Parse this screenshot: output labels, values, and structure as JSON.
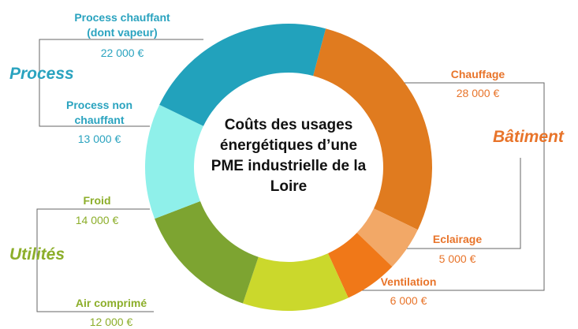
{
  "chart_data": {
    "type": "pie",
    "donut": true,
    "title": "Coûts des usages énergétiques d’une PME industrielle de la Loire",
    "categories": [
      "Chauffage",
      "Eclairage",
      "Ventilation",
      "Air comprimé",
      "Froid",
      "Process non chauffant",
      "Process chauffant (dont vapeur)"
    ],
    "values": [
      28000,
      5000,
      6000,
      12000,
      14000,
      13000,
      22000
    ],
    "value_labels": [
      "28 000 €",
      "5 000 €",
      "6 000 €",
      "12 000 €",
      "14 000 €",
      "13 000 €",
      "22 000 €"
    ],
    "colors": [
      "#e07b1f",
      "#f2a867",
      "#f07818",
      "#cbd82c",
      "#7da431",
      "#8ff0ea",
      "#22a2bc"
    ],
    "groups": [
      "Process",
      "Bâtiment",
      "Utilités"
    ]
  }
}
